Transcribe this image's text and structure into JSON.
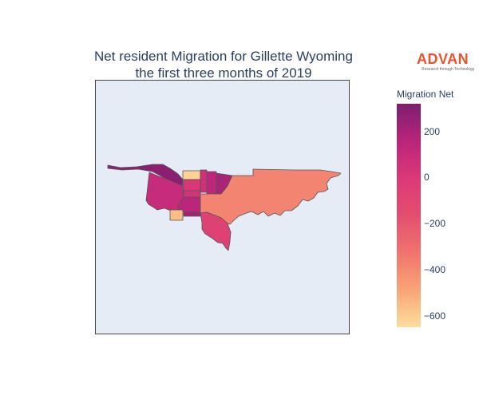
{
  "title": {
    "line1": "Net resident Migration for Gillette Wyoming",
    "line2": "the first three months of 2019"
  },
  "logo": {
    "word": "ADVAN",
    "tagline": "Research through Technology"
  },
  "colorbar": {
    "title": "Migration Net",
    "min": -650,
    "max": 320,
    "ticks": [
      {
        "value": 200,
        "label": "200"
      },
      {
        "value": 0,
        "label": "0"
      },
      {
        "value": -200,
        "label": "−200"
      },
      {
        "value": -400,
        "label": "−400"
      },
      {
        "value": -600,
        "label": "−600"
      }
    ],
    "colorscale": [
      "#fcde9c",
      "#faa476",
      "#f0746e",
      "#e34f6f",
      "#dc3977",
      "#b9257a",
      "#7c1d6f"
    ]
  },
  "map": {
    "background": "#e5ecf6",
    "regions": [
      {
        "name": "north-strip",
        "value": 280
      },
      {
        "name": "west-large",
        "value": 100
      },
      {
        "name": "center-north",
        "value": -620
      },
      {
        "name": "center-middle",
        "value": 10
      },
      {
        "name": "center-lower",
        "value": 40
      },
      {
        "name": "center-bottom",
        "value": 150
      },
      {
        "name": "small-east",
        "value": 60
      },
      {
        "name": "block-east",
        "value": 140
      },
      {
        "name": "block-right",
        "value": 200
      },
      {
        "name": "south-small",
        "value": -560
      },
      {
        "name": "east-large",
        "value": -380
      },
      {
        "name": "south-peninsula",
        "value": -60
      },
      {
        "name": "bottom-middle",
        "value": 220
      }
    ]
  }
}
